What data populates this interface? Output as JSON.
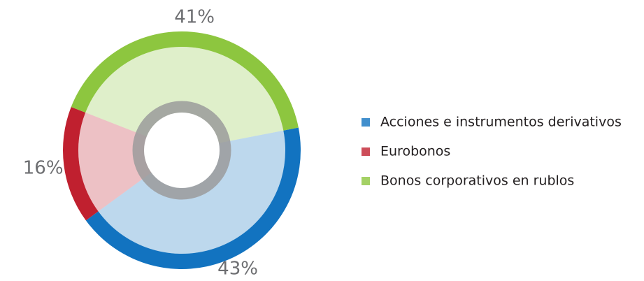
{
  "chart_data": {
    "type": "pie",
    "categories": [
      "Acciones e instrumentos derivativos",
      "Eurobonos",
      "Bonos corporativos en rublos"
    ],
    "values": [
      43,
      16,
      41
    ],
    "value_labels": [
      "43%",
      "16%",
      "41%"
    ],
    "colors": [
      "#1273c0",
      "#c0202f",
      "#8dc63f"
    ]
  }
}
